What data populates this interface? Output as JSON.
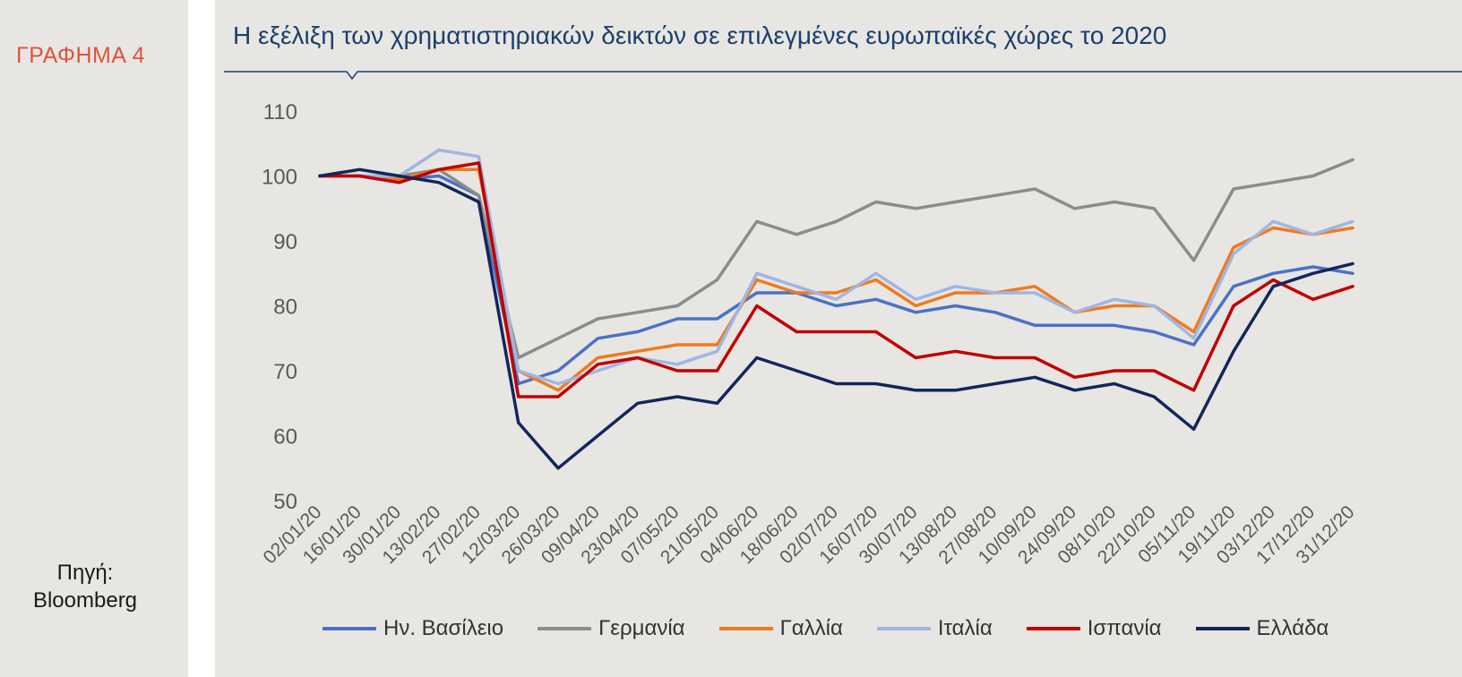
{
  "figure_label": "ΓΡΑΦΗΜΑ 4",
  "source": {
    "line1": "Πηγή:",
    "line2": "Bloomberg"
  },
  "chart_data": {
    "type": "line",
    "title": "Η εξέλιξη των χρηματιστηριακών δεικτών σε επιλεγμένες ευρωπαϊκές χώρες το 2020",
    "xlabel": "",
    "ylabel": "",
    "ylim": [
      50,
      110
    ],
    "yticks": [
      50,
      60,
      70,
      80,
      90,
      100,
      110
    ],
    "grid": false,
    "legend_position": "bottom",
    "x": [
      "02/01/20",
      "16/01/20",
      "30/01/20",
      "13/02/20",
      "27/02/20",
      "12/03/20",
      "26/03/20",
      "09/04/20",
      "23/04/20",
      "07/05/20",
      "21/05/20",
      "04/06/20",
      "18/06/20",
      "02/07/20",
      "16/07/20",
      "30/07/20",
      "13/08/20",
      "27/08/20",
      "10/09/20",
      "24/09/20",
      "08/10/20",
      "22/10/20",
      "05/11/20",
      "19/11/20",
      "03/12/20",
      "17/12/20",
      "31/12/20"
    ],
    "series": [
      {
        "name": "Ην. Βασίλειο",
        "color": "#4a72c4",
        "values": [
          100,
          100,
          99.5,
          100,
          97,
          68,
          70,
          75,
          76,
          78,
          78,
          82,
          82,
          80,
          81,
          79,
          80,
          79,
          77,
          77,
          77,
          76,
          74,
          83,
          85,
          86,
          85
        ]
      },
      {
        "name": "Γερμανία",
        "color": "#8c8c8c",
        "values": [
          100,
          100,
          100,
          101,
          97,
          72,
          75,
          78,
          79,
          80,
          84,
          93,
          91,
          93,
          96,
          95,
          96,
          97,
          98,
          95,
          96,
          95,
          87,
          98,
          99,
          100,
          102.5
        ]
      },
      {
        "name": "Γαλλία",
        "color": "#f07a1e",
        "values": [
          100,
          100,
          99.5,
          101,
          101,
          70,
          67,
          72,
          73,
          74,
          74,
          84,
          82,
          82,
          84,
          80,
          82,
          82,
          83,
          79,
          80,
          80,
          76,
          89,
          92,
          91,
          92
        ]
      },
      {
        "name": "Ιταλία",
        "color": "#9fb6e4",
        "values": [
          100,
          100,
          100,
          104,
          103,
          70,
          68,
          70,
          72,
          71,
          73,
          85,
          83,
          81,
          85,
          81,
          83,
          82,
          82,
          79,
          81,
          80,
          75,
          88,
          93,
          91,
          93
        ]
      },
      {
        "name": "Ισπανία",
        "color": "#c00000",
        "values": [
          100,
          100,
          99,
          101,
          102,
          66,
          66,
          71,
          72,
          70,
          70,
          80,
          76,
          76,
          76,
          72,
          73,
          72,
          72,
          69,
          70,
          70,
          67,
          80,
          84,
          81,
          83
        ]
      },
      {
        "name": "Ελλάδα",
        "color": "#13265c",
        "values": [
          100,
          101,
          100,
          99,
          96,
          62,
          55,
          60,
          65,
          66,
          65,
          72,
          70,
          68,
          68,
          67,
          67,
          68,
          69,
          67,
          68,
          66,
          61,
          73,
          83,
          85,
          86.5
        ]
      }
    ]
  }
}
